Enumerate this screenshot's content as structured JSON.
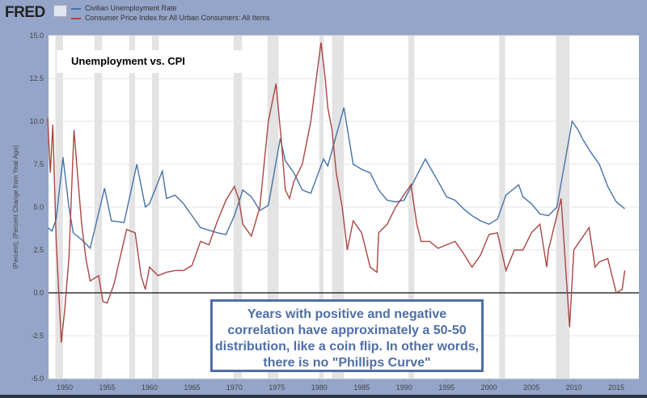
{
  "header": {
    "logo": "FRED",
    "legend": [
      {
        "label": "Civilian Unemployment Rate",
        "color": "#4572a7"
      },
      {
        "label": "Consumer Price Index for All Urban Consumers: All Items",
        "color": "#aa4643"
      }
    ]
  },
  "chart_data": {
    "type": "line",
    "title": "Unemployment vs. CPI",
    "ylabel": "(Percent), (Percent Change from Year Ago)",
    "xlabel": "",
    "xlim": [
      1948,
      2016
    ],
    "ylim": [
      -5,
      15
    ],
    "yticks": [
      "15.0",
      "12.5",
      "10.0",
      "7.5",
      "5.0",
      "2.5",
      "0.0",
      "-2.5",
      "-5.0"
    ],
    "xticks": [
      "1950",
      "1955",
      "1960",
      "1965",
      "1970",
      "1975",
      "1980",
      "1985",
      "1990",
      "1995",
      "2000",
      "2005",
      "2010",
      "2015"
    ],
    "recessions": [
      [
        1948.9,
        1949.8
      ],
      [
        1953.5,
        1954.4
      ],
      [
        1957.6,
        1958.3
      ],
      [
        1960.3,
        1961.1
      ],
      [
        1969.9,
        1970.9
      ],
      [
        1973.9,
        1975.2
      ],
      [
        1980.0,
        1980.5
      ],
      [
        1981.5,
        1982.9
      ],
      [
        1990.5,
        1991.2
      ],
      [
        2001.2,
        2001.9
      ],
      [
        2007.9,
        2009.5
      ]
    ],
    "series": [
      {
        "name": "Civilian Unemployment Rate",
        "color": "#4572a7",
        "points": [
          [
            1948,
            3.8
          ],
          [
            1948.5,
            3.6
          ],
          [
            1949,
            4.3
          ],
          [
            1949.8,
            7.9
          ],
          [
            1950.5,
            5.0
          ],
          [
            1951,
            3.5
          ],
          [
            1952,
            3.1
          ],
          [
            1953,
            2.6
          ],
          [
            1954.7,
            6.1
          ],
          [
            1955.5,
            4.2
          ],
          [
            1957,
            4.1
          ],
          [
            1958.5,
            7.5
          ],
          [
            1959.5,
            5.0
          ],
          [
            1960,
            5.2
          ],
          [
            1961.5,
            7.1
          ],
          [
            1962,
            5.5
          ],
          [
            1963,
            5.7
          ],
          [
            1964,
            5.2
          ],
          [
            1965,
            4.5
          ],
          [
            1966,
            3.8
          ],
          [
            1968,
            3.5
          ],
          [
            1969,
            3.4
          ],
          [
            1970,
            4.5
          ],
          [
            1971,
            6.0
          ],
          [
            1972,
            5.6
          ],
          [
            1973,
            4.8
          ],
          [
            1974,
            5.1
          ],
          [
            1975.4,
            9.0
          ],
          [
            1976,
            7.7
          ],
          [
            1977,
            7.0
          ],
          [
            1978,
            6.0
          ],
          [
            1979,
            5.8
          ],
          [
            1980.5,
            7.8
          ],
          [
            1981,
            7.4
          ],
          [
            1982.9,
            10.8
          ],
          [
            1984,
            7.5
          ],
          [
            1985,
            7.2
          ],
          [
            1986,
            7.0
          ],
          [
            1987,
            6.0
          ],
          [
            1988,
            5.4
          ],
          [
            1989,
            5.3
          ],
          [
            1990,
            5.4
          ],
          [
            1992.5,
            7.8
          ],
          [
            1994,
            6.5
          ],
          [
            1995,
            5.6
          ],
          [
            1996,
            5.4
          ],
          [
            1997,
            4.9
          ],
          [
            1998,
            4.5
          ],
          [
            1999,
            4.2
          ],
          [
            2000,
            4.0
          ],
          [
            2001,
            4.3
          ],
          [
            2002,
            5.7
          ],
          [
            2003.5,
            6.3
          ],
          [
            2004,
            5.6
          ],
          [
            2005,
            5.2
          ],
          [
            2006,
            4.6
          ],
          [
            2007,
            4.5
          ],
          [
            2008,
            5.0
          ],
          [
            2009.8,
            10.0
          ],
          [
            2010.5,
            9.5
          ],
          [
            2011,
            9.0
          ],
          [
            2012,
            8.2
          ],
          [
            2013,
            7.5
          ],
          [
            2014,
            6.2
          ],
          [
            2015,
            5.3
          ],
          [
            2016,
            4.9
          ]
        ]
      },
      {
        "name": "Consumer Price Index for All Urban Consumers: All Items",
        "color": "#aa4643",
        "points": [
          [
            1948,
            10.2
          ],
          [
            1948.3,
            7
          ],
          [
            1948.6,
            9.8
          ],
          [
            1949,
            3
          ],
          [
            1949.6,
            -2.9
          ],
          [
            1950,
            -1
          ],
          [
            1950.5,
            2
          ],
          [
            1951.1,
            9.5
          ],
          [
            1951.5,
            7
          ],
          [
            1952,
            4
          ],
          [
            1952.5,
            2
          ],
          [
            1953,
            0.7
          ],
          [
            1954,
            1
          ],
          [
            1954.5,
            -0.5
          ],
          [
            1955,
            -0.6
          ],
          [
            1955.8,
            0.5
          ],
          [
            1956.5,
            2
          ],
          [
            1957.3,
            3.7
          ],
          [
            1958.3,
            3.5
          ],
          [
            1959,
            1
          ],
          [
            1959.5,
            0.2
          ],
          [
            1960,
            1.5
          ],
          [
            1961,
            1
          ],
          [
            1962,
            1.2
          ],
          [
            1963,
            1.3
          ],
          [
            1964,
            1.3
          ],
          [
            1965,
            1.6
          ],
          [
            1966,
            3.0
          ],
          [
            1967,
            2.8
          ],
          [
            1968,
            4.2
          ],
          [
            1969,
            5.4
          ],
          [
            1970,
            6.2
          ],
          [
            1970.5,
            5.5
          ],
          [
            1971,
            4.0
          ],
          [
            1972,
            3.3
          ],
          [
            1973,
            5.0
          ],
          [
            1974,
            10
          ],
          [
            1974.9,
            12.2
          ],
          [
            1975.5,
            9
          ],
          [
            1976,
            6
          ],
          [
            1976.5,
            5.5
          ],
          [
            1977,
            6.5
          ],
          [
            1978,
            7.5
          ],
          [
            1979,
            10
          ],
          [
            1980.2,
            14.6
          ],
          [
            1980.7,
            12.5
          ],
          [
            1981,
            10.8
          ],
          [
            1981.5,
            9.5
          ],
          [
            1982,
            7
          ],
          [
            1982.7,
            5
          ],
          [
            1983.3,
            2.5
          ],
          [
            1984,
            4.2
          ],
          [
            1985,
            3.5
          ],
          [
            1986,
            1.5
          ],
          [
            1986.8,
            1.2
          ],
          [
            1987,
            3.5
          ],
          [
            1988,
            4
          ],
          [
            1989,
            5
          ],
          [
            1990.8,
            6.3
          ],
          [
            1991.5,
            4
          ],
          [
            1992,
            3
          ],
          [
            1993,
            3
          ],
          [
            1994,
            2.6
          ],
          [
            1995,
            2.8
          ],
          [
            1996,
            3
          ],
          [
            1997,
            2.3
          ],
          [
            1998,
            1.5
          ],
          [
            1999,
            2.2
          ],
          [
            2000,
            3.4
          ],
          [
            2001,
            3.5
          ],
          [
            2002,
            1.3
          ],
          [
            2003,
            2.5
          ],
          [
            2004,
            2.5
          ],
          [
            2005,
            3.5
          ],
          [
            2006,
            4.0
          ],
          [
            2006.8,
            1.5
          ],
          [
            2007,
            2.5
          ],
          [
            2008.5,
            5.5
          ],
          [
            2009.5,
            -2.0
          ],
          [
            2010,
            2.5
          ],
          [
            2011.8,
            3.8
          ],
          [
            2012.5,
            1.5
          ],
          [
            2013,
            1.8
          ],
          [
            2014,
            2
          ],
          [
            2015,
            0
          ],
          [
            2015.7,
            0.2
          ],
          [
            2016,
            1.3
          ]
        ]
      }
    ]
  },
  "annotation": {
    "title": "Unemployment vs. CPI",
    "note": "Years with positive and negative correlation have approximately a 50-50 distribution, like a coin flip. In other words, there is no \"Phillips Curve\""
  }
}
